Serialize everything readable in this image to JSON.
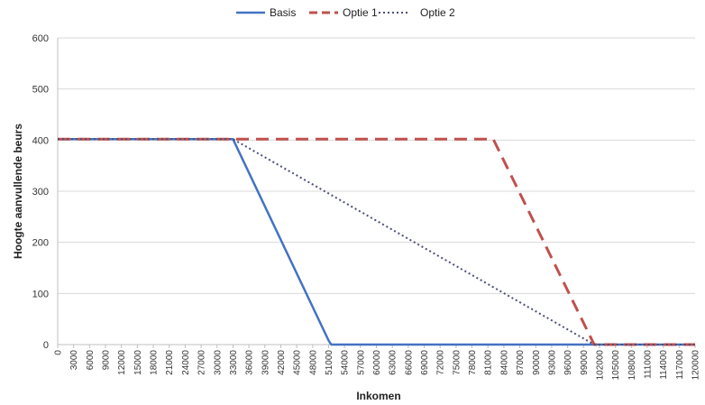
{
  "chart_data": {
    "type": "line",
    "title": "",
    "xlabel": "Inkomen",
    "ylabel": "Hoogte aanvullende beurs",
    "xlim": [
      0,
      120000
    ],
    "ylim": [
      0,
      600
    ],
    "x_ticks": [
      0,
      3000,
      6000,
      9000,
      12000,
      15000,
      18000,
      21000,
      24000,
      27000,
      30000,
      33000,
      36000,
      39000,
      42000,
      45000,
      48000,
      51000,
      54000,
      57000,
      60000,
      63000,
      66000,
      69000,
      72000,
      75000,
      78000,
      81000,
      84000,
      87000,
      90000,
      93000,
      96000,
      99000,
      102000,
      105000,
      108000,
      111000,
      114000,
      117000,
      120000
    ],
    "y_ticks": [
      0,
      100,
      200,
      300,
      400,
      500,
      600
    ],
    "grid": "horizontal",
    "legend_position": "top",
    "series": [
      {
        "name": "Basis",
        "color": "#4472c4",
        "style": "solid",
        "x": [
          0,
          33000,
          51000,
          51500,
          120000
        ],
        "y": [
          402,
          402,
          8,
          0,
          0
        ]
      },
      {
        "name": "Optie 1",
        "color": "#c0504d",
        "style": "dashed",
        "x": [
          0,
          82000,
          101000,
          120000
        ],
        "y": [
          402,
          402,
          0,
          0
        ]
      },
      {
        "name": "Optie 2",
        "color": "#4a4e7a",
        "style": "dotted",
        "x": [
          0,
          33000,
          101000,
          120000
        ],
        "y": [
          402,
          402,
          0,
          0
        ]
      }
    ]
  }
}
